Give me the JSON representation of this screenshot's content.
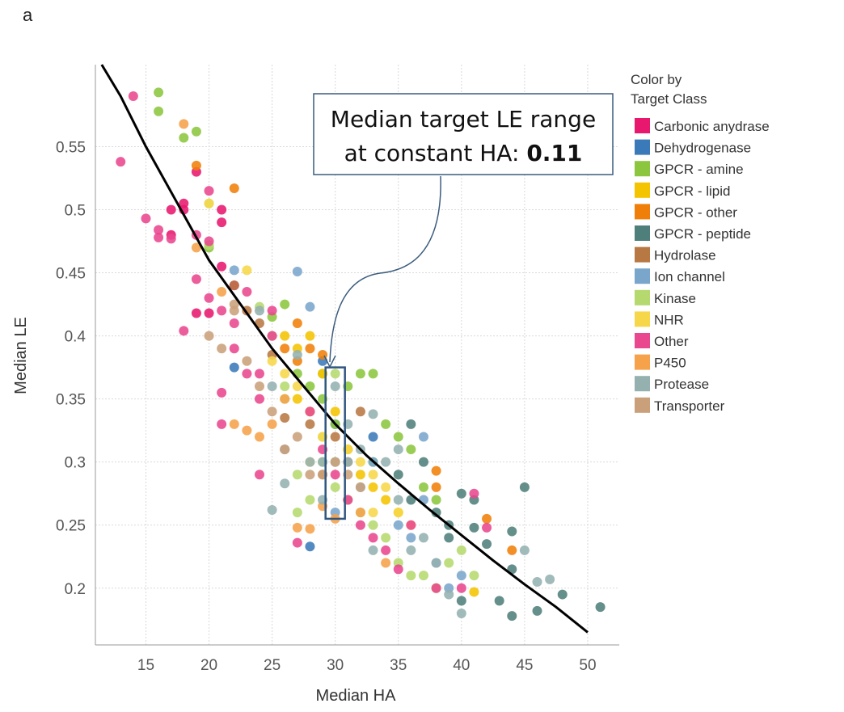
{
  "panel_label": "a",
  "chart_data": {
    "type": "scatter",
    "xlabel": "Median HA",
    "ylabel": "Median LE",
    "xlim": [
      11,
      52.5
    ],
    "ylim": [
      0.155,
      0.615
    ],
    "x_ticks": [
      15,
      20,
      25,
      30,
      35,
      40,
      45,
      50
    ],
    "y_ticks": [
      0.2,
      0.25,
      0.3,
      0.35,
      0.4,
      0.45,
      0.5,
      0.55
    ],
    "grid": true,
    "legend_placement": "right",
    "legend_title_lines": [
      "Color by",
      "Target Class"
    ],
    "annotation": {
      "line1": "Median target LE range",
      "line2_prefix": "at constant HA: ",
      "line2_value": "0.11",
      "highlight_x": 30,
      "highlight_ylim": [
        0.255,
        0.375
      ]
    },
    "fit_curve": {
      "x": [
        11.5,
        13,
        15,
        17.5,
        20,
        22.5,
        25,
        27.5,
        30,
        32.5,
        35,
        37.5,
        40,
        42.5,
        45,
        47.5,
        50
      ],
      "y": [
        0.615,
        0.59,
        0.55,
        0.505,
        0.46,
        0.425,
        0.39,
        0.36,
        0.33,
        0.305,
        0.283,
        0.262,
        0.242,
        0.222,
        0.203,
        0.185,
        0.165
      ]
    },
    "series": [
      {
        "name": "Carbonic anydrase",
        "color": "#e8186e",
        "points": [
          [
            17,
            0.5
          ],
          [
            17,
            0.48
          ],
          [
            18,
            0.5
          ],
          [
            18,
            0.505
          ],
          [
            19,
            0.53
          ],
          [
            19,
            0.418
          ],
          [
            20,
            0.418
          ],
          [
            21,
            0.5
          ],
          [
            21,
            0.49
          ],
          [
            22,
            0.44
          ],
          [
            21,
            0.455
          ]
        ]
      },
      {
        "name": "Dehydrogenase",
        "color": "#3a7ab8",
        "points": [
          [
            22,
            0.375
          ],
          [
            28,
            0.233
          ],
          [
            29,
            0.38
          ],
          [
            30,
            0.33
          ],
          [
            31,
            0.31
          ],
          [
            33,
            0.32
          ]
        ]
      },
      {
        "name": "GPCR - amine",
        "color": "#8cc63f",
        "points": [
          [
            16,
            0.593
          ],
          [
            16,
            0.578
          ],
          [
            18,
            0.557
          ],
          [
            19,
            0.562
          ],
          [
            20,
            0.47
          ],
          [
            26,
            0.425
          ],
          [
            25,
            0.415
          ],
          [
            27,
            0.37
          ],
          [
            28,
            0.36
          ],
          [
            29,
            0.37
          ],
          [
            30,
            0.33
          ],
          [
            31,
            0.36
          ],
          [
            32,
            0.37
          ],
          [
            33,
            0.37
          ],
          [
            34,
            0.33
          ],
          [
            35,
            0.32
          ],
          [
            33,
            0.3
          ],
          [
            36,
            0.31
          ],
          [
            37,
            0.28
          ],
          [
            38,
            0.27
          ],
          [
            28,
            0.34
          ],
          [
            29,
            0.35
          ]
        ]
      },
      {
        "name": "GPCR - lipid",
        "color": "#f5c400",
        "points": [
          [
            26,
            0.4
          ],
          [
            27,
            0.39
          ],
          [
            28,
            0.4
          ],
          [
            29,
            0.37
          ],
          [
            30,
            0.34
          ],
          [
            31,
            0.31
          ],
          [
            32,
            0.29
          ],
          [
            33,
            0.28
          ],
          [
            34,
            0.27
          ],
          [
            35,
            0.26
          ],
          [
            41,
            0.197
          ],
          [
            38,
            0.2
          ],
          [
            27,
            0.35
          ]
        ]
      },
      {
        "name": "GPCR - other",
        "color": "#f07f09",
        "points": [
          [
            19,
            0.535
          ],
          [
            22,
            0.517
          ],
          [
            26,
            0.39
          ],
          [
            27,
            0.41
          ],
          [
            28,
            0.39
          ],
          [
            29,
            0.385
          ],
          [
            38,
            0.293
          ],
          [
            38,
            0.28
          ],
          [
            42,
            0.255
          ],
          [
            44,
            0.23
          ],
          [
            27,
            0.38
          ]
        ]
      },
      {
        "name": "GPCR - peptide",
        "color": "#4f7f7a",
        "points": [
          [
            36,
            0.33
          ],
          [
            37,
            0.3
          ],
          [
            38,
            0.26
          ],
          [
            39,
            0.25
          ],
          [
            40,
            0.275
          ],
          [
            41,
            0.27
          ],
          [
            41,
            0.248
          ],
          [
            42,
            0.235
          ],
          [
            43,
            0.19
          ],
          [
            44,
            0.178
          ],
          [
            44,
            0.215
          ],
          [
            44,
            0.245
          ],
          [
            45,
            0.28
          ],
          [
            46,
            0.182
          ],
          [
            48,
            0.195
          ],
          [
            51,
            0.185
          ],
          [
            35,
            0.29
          ],
          [
            36,
            0.27
          ],
          [
            39,
            0.24
          ],
          [
            40,
            0.19
          ]
        ]
      },
      {
        "name": "Hydrolase",
        "color": "#b87843",
        "points": [
          [
            22,
            0.44
          ],
          [
            23,
            0.42
          ],
          [
            24,
            0.41
          ],
          [
            25,
            0.385
          ],
          [
            26,
            0.335
          ],
          [
            28,
            0.33
          ],
          [
            30,
            0.32
          ],
          [
            31,
            0.3
          ],
          [
            32,
            0.34
          ],
          [
            29,
            0.29
          ]
        ]
      },
      {
        "name": "Ion channel",
        "color": "#7aa6cc",
        "points": [
          [
            22,
            0.452
          ],
          [
            27,
            0.451
          ],
          [
            28,
            0.423
          ],
          [
            30,
            0.26
          ],
          [
            31,
            0.27
          ],
          [
            33,
            0.3
          ],
          [
            35,
            0.25
          ],
          [
            36,
            0.24
          ],
          [
            37,
            0.27
          ],
          [
            38,
            0.22
          ],
          [
            39,
            0.2
          ],
          [
            40,
            0.21
          ],
          [
            37,
            0.32
          ],
          [
            32,
            0.28
          ]
        ]
      },
      {
        "name": "Kinase",
        "color": "#b5d96e",
        "points": [
          [
            20,
            0.505
          ],
          [
            20,
            0.472
          ],
          [
            24,
            0.423
          ],
          [
            25,
            0.4
          ],
          [
            26,
            0.36
          ],
          [
            26,
            0.35
          ],
          [
            27,
            0.29
          ],
          [
            27,
            0.26
          ],
          [
            28,
            0.27
          ],
          [
            29,
            0.3
          ],
          [
            30,
            0.28
          ],
          [
            31,
            0.27
          ],
          [
            32,
            0.26
          ],
          [
            33,
            0.25
          ],
          [
            34,
            0.24
          ],
          [
            35,
            0.22
          ],
          [
            36,
            0.21
          ],
          [
            37,
            0.21
          ],
          [
            38,
            0.2
          ],
          [
            39,
            0.22
          ],
          [
            40,
            0.23
          ],
          [
            41,
            0.21
          ],
          [
            30,
            0.37
          ],
          [
            29,
            0.32
          ]
        ]
      },
      {
        "name": "NHR",
        "color": "#f7d74a",
        "points": [
          [
            20,
            0.505
          ],
          [
            23,
            0.452
          ],
          [
            25,
            0.38
          ],
          [
            26,
            0.37
          ],
          [
            27,
            0.36
          ],
          [
            28,
            0.34
          ],
          [
            29,
            0.32
          ],
          [
            31,
            0.31
          ],
          [
            32,
            0.3
          ],
          [
            33,
            0.29
          ],
          [
            34,
            0.28
          ],
          [
            35,
            0.26
          ],
          [
            36,
            0.25
          ],
          [
            28,
            0.3
          ],
          [
            33,
            0.26
          ]
        ]
      },
      {
        "name": "Other",
        "color": "#e9478e",
        "points": [
          [
            13,
            0.538
          ],
          [
            14,
            0.59
          ],
          [
            15,
            0.493
          ],
          [
            16,
            0.478
          ],
          [
            16,
            0.484
          ],
          [
            17,
            0.477
          ],
          [
            19,
            0.445
          ],
          [
            19,
            0.48
          ],
          [
            18,
            0.404
          ],
          [
            20,
            0.43
          ],
          [
            20,
            0.475
          ],
          [
            21,
            0.42
          ],
          [
            21,
            0.355
          ],
          [
            21,
            0.33
          ],
          [
            22,
            0.39
          ],
          [
            23,
            0.435
          ],
          [
            24,
            0.29
          ],
          [
            24,
            0.35
          ],
          [
            25,
            0.4
          ],
          [
            26,
            0.31
          ],
          [
            27,
            0.236
          ],
          [
            28,
            0.34
          ],
          [
            29,
            0.31
          ],
          [
            30,
            0.29
          ],
          [
            31,
            0.27
          ],
          [
            32,
            0.25
          ],
          [
            33,
            0.24
          ],
          [
            34,
            0.23
          ],
          [
            35,
            0.215
          ],
          [
            36,
            0.25
          ],
          [
            38,
            0.2
          ],
          [
            40,
            0.2
          ],
          [
            41,
            0.275
          ],
          [
            42,
            0.248
          ],
          [
            20,
            0.515
          ],
          [
            22,
            0.41
          ],
          [
            23,
            0.37
          ],
          [
            25,
            0.42
          ],
          [
            24,
            0.37
          ]
        ]
      },
      {
        "name": "P450",
        "color": "#f6a24a",
        "points": [
          [
            18,
            0.568
          ],
          [
            19,
            0.47
          ],
          [
            21,
            0.435
          ],
          [
            22,
            0.33
          ],
          [
            23,
            0.325
          ],
          [
            24,
            0.32
          ],
          [
            25,
            0.33
          ],
          [
            26,
            0.35
          ],
          [
            27,
            0.248
          ],
          [
            28,
            0.247
          ],
          [
            29,
            0.265
          ],
          [
            30,
            0.255
          ],
          [
            32,
            0.26
          ],
          [
            34,
            0.22
          ]
        ]
      },
      {
        "name": "Protease",
        "color": "#94b1b0",
        "points": [
          [
            24,
            0.42
          ],
          [
            25,
            0.36
          ],
          [
            25,
            0.262
          ],
          [
            26,
            0.31
          ],
          [
            26,
            0.283
          ],
          [
            27,
            0.385
          ],
          [
            28,
            0.3
          ],
          [
            29,
            0.3
          ],
          [
            30,
            0.36
          ],
          [
            30,
            0.3
          ],
          [
            31,
            0.3
          ],
          [
            32,
            0.31
          ],
          [
            33,
            0.338
          ],
          [
            33,
            0.23
          ],
          [
            34,
            0.3
          ],
          [
            35,
            0.27
          ],
          [
            36,
            0.23
          ],
          [
            37,
            0.24
          ],
          [
            38,
            0.22
          ],
          [
            39,
            0.195
          ],
          [
            40,
            0.18
          ],
          [
            45,
            0.23
          ],
          [
            46,
            0.205
          ],
          [
            47,
            0.207
          ],
          [
            35,
            0.31
          ],
          [
            31,
            0.33
          ],
          [
            29,
            0.27
          ]
        ]
      },
      {
        "name": "Transporter",
        "color": "#c9a07a",
        "points": [
          [
            20,
            0.4
          ],
          [
            21,
            0.39
          ],
          [
            22,
            0.42
          ],
          [
            23,
            0.38
          ],
          [
            24,
            0.36
          ],
          [
            25,
            0.34
          ],
          [
            26,
            0.31
          ],
          [
            27,
            0.32
          ],
          [
            28,
            0.29
          ],
          [
            29,
            0.29
          ],
          [
            30,
            0.3
          ],
          [
            31,
            0.29
          ],
          [
            32,
            0.28
          ],
          [
            22,
            0.425
          ]
        ]
      }
    ]
  }
}
